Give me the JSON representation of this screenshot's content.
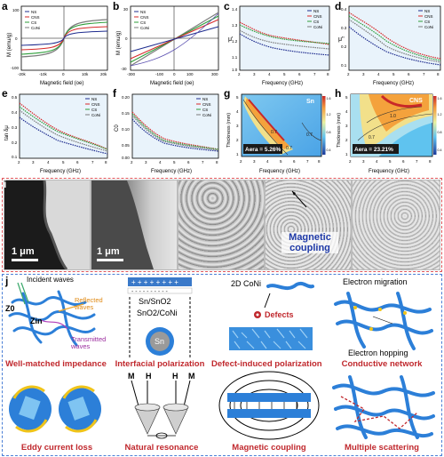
{
  "panels": {
    "a": {
      "label": "a",
      "ylabel": "M (emu/g)",
      "xlabel": "Magnetic field (oe)",
      "xticks": [
        "-20k",
        "-15k",
        "-10k",
        "-5k",
        "0",
        "5k",
        "10k",
        "15k",
        "20k"
      ],
      "yticks": [
        "100",
        "50",
        "0",
        "-50",
        "-100"
      ],
      "legend": [
        "NS",
        "CNS",
        "CS",
        "CoNi"
      ]
    },
    "b": {
      "label": "b",
      "ylabel": "M (emu/g)",
      "xlabel": "Magnetic field (oe)",
      "xticks": [
        "-300",
        "-200",
        "-100",
        "0",
        "100",
        "200",
        "300"
      ],
      "yticks": [
        "30",
        "20",
        "10",
        "0",
        "-10",
        "-20",
        "-30"
      ],
      "legend": [
        "NS",
        "CNS",
        "CS",
        "CoNi"
      ]
    },
    "c": {
      "label": "c",
      "ylabel": "μ'",
      "xlabel": "Frequency (GHz)",
      "xticks": [
        "2",
        "3",
        "4",
        "5",
        "6",
        "7",
        "8"
      ],
      "yticks": [
        "1.4",
        "1.3",
        "1.2",
        "1.1",
        "1.0"
      ],
      "legend": [
        "NS",
        "CNS",
        "CS",
        "CoNi"
      ]
    },
    "d": {
      "label": "d",
      "ylabel": "μ''",
      "xlabel": "Frequency (GHz)",
      "xticks": [
        "2",
        "3",
        "4",
        "5",
        "6",
        "7",
        "8"
      ],
      "yticks": [
        "0.4",
        "0.3",
        "0.2",
        "0.1"
      ],
      "legend": [
        "NS",
        "CNS",
        "CS",
        "CoNi"
      ]
    },
    "e": {
      "label": "e",
      "ylabel": "tan δμ",
      "xlabel": "Frequency (GHz)",
      "xticks": [
        "2",
        "3",
        "4",
        "5",
        "6",
        "7",
        "8"
      ],
      "yticks": [
        "0.5",
        "0.4",
        "0.3",
        "0.2",
        "0.1"
      ],
      "legend": [
        "NS",
        "CNS",
        "CS",
        "CoNi"
      ]
    },
    "f": {
      "label": "f",
      "ylabel": "C0",
      "xlabel": "Frequency (GHz)",
      "xticks": [
        "2",
        "3",
        "4",
        "5",
        "6",
        "7",
        "8"
      ],
      "yticks": [
        "0.20",
        "0.15",
        "0.10",
        "0.05",
        "0.00"
      ],
      "legend": [
        "NS",
        "CNS",
        "CS",
        "CoNi"
      ]
    },
    "g": {
      "label": "g",
      "ylabel": "Thickness (mm)",
      "xlabel": "Frequency (GHz)",
      "tag": "Sn",
      "area": "Aera = 5.26%",
      "xticks": [
        "2",
        "3",
        "4",
        "5",
        "6",
        "7",
        "8"
      ],
      "yticks": [
        "5",
        "4",
        "3",
        "2",
        "1"
      ],
      "contours": [
        "0.7",
        "0.7",
        "0.7"
      ],
      "cbar": [
        "1.6",
        "1.2",
        "0.8",
        "0.4"
      ],
      "cbarLabel": "|Zin/Z0|"
    },
    "h": {
      "label": "h",
      "ylabel": "Thickness (mm)",
      "xlabel": "Frequency (GHz)",
      "tag": "CNS",
      "area": "Aera = 23.21%",
      "xticks": [
        "2",
        "3",
        "4",
        "5",
        "6",
        "7",
        "8"
      ],
      "yticks": [
        "5",
        "4",
        "3",
        "2",
        "1"
      ],
      "contours": [
        "0.7",
        "1.0"
      ],
      "cbar": [
        "1.6",
        "1.2",
        "0.8",
        "0.4"
      ],
      "cbarLabel": "|Zin/Z0|"
    }
  },
  "micro": {
    "label": "i",
    "scale1": "1 μm",
    "scale2": "1 μm",
    "callout": "Magnetic coupling"
  },
  "mech": {
    "label": "j",
    "incident": "Incident waves",
    "reflected": "Reflected waves",
    "transmitted": "Transmitted waves",
    "z0": "Z0",
    "zin": "Zin",
    "sn_sno2": "Sn/SnO2",
    "sno2_coni": "SnO2/CoNi",
    "sn": "Sn",
    "coni2d": "2D CoNi",
    "defects": "Defects",
    "migration": "Electron migration",
    "hopping": "Electron hopping",
    "M": "M",
    "H": "H",
    "titles": [
      "Well-matched impedance",
      "Interfacial polarization",
      "Defect-induced polarization",
      "Conductive network",
      "Eddy current loss",
      "Natural resonance",
      "Magnetic coupling",
      "Multiple scattering"
    ]
  },
  "colors": {
    "NS": "#1f2d8f",
    "CNS": "#d62a2a",
    "CS": "#2e9e3a",
    "CoNi": "#7b7b7b",
    "accent": "#c0282d",
    "blue": "#2c7fd8"
  }
}
